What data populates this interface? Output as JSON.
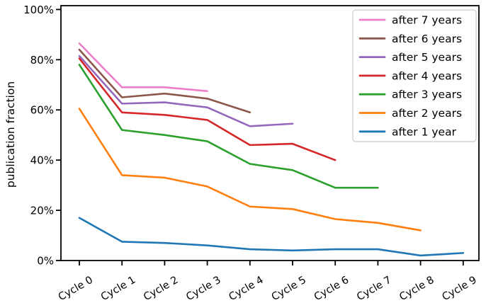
{
  "chart_data": {
    "type": "line",
    "title": "",
    "xlabel": "",
    "ylabel": "publication fraction",
    "categories": [
      "Cycle 0",
      "Cycle 1",
      "Cycle 2",
      "Cycle 3",
      "Cycle 4",
      "Cycle 5",
      "Cycle 6",
      "Cycle 7",
      "Cycle 8",
      "Cycle 9"
    ],
    "ylim": [
      0,
      100
    ],
    "yticks": [
      "0%",
      "20%",
      "40%",
      "60%",
      "80%",
      "100%"
    ],
    "ytick_values": [
      0,
      20,
      40,
      60,
      80,
      100
    ],
    "grid": false,
    "legend_position": "upper right",
    "axis_color": "#000000",
    "series": [
      {
        "name": "after 7 years",
        "color": "#ed7fc8",
        "values": [
          86.5,
          69,
          69,
          67.5
        ]
      },
      {
        "name": "after 6 years",
        "color": "#8c564b",
        "values": [
          84,
          65,
          66.5,
          64.5,
          59
        ]
      },
      {
        "name": "after 5 years",
        "color": "#9467bd",
        "values": [
          81.5,
          62.5,
          63,
          61,
          53.5,
          54.5
        ]
      },
      {
        "name": "after 4 years",
        "color": "#d62728",
        "values": [
          80.5,
          59,
          58,
          56,
          46,
          46.5,
          40
        ]
      },
      {
        "name": "after 3 years",
        "color": "#2ca02c",
        "values": [
          78,
          52,
          50,
          47.5,
          38.5,
          36,
          29,
          29
        ]
      },
      {
        "name": "after 2 years",
        "color": "#ff7f0e",
        "values": [
          60.5,
          34,
          33,
          29.5,
          21.5,
          20.5,
          16.5,
          15,
          12
        ]
      },
      {
        "name": "after 1 year",
        "color": "#1f77b4",
        "values": [
          17,
          7.5,
          7,
          6,
          4.5,
          4,
          4.5,
          4.5,
          2,
          3
        ]
      }
    ]
  }
}
